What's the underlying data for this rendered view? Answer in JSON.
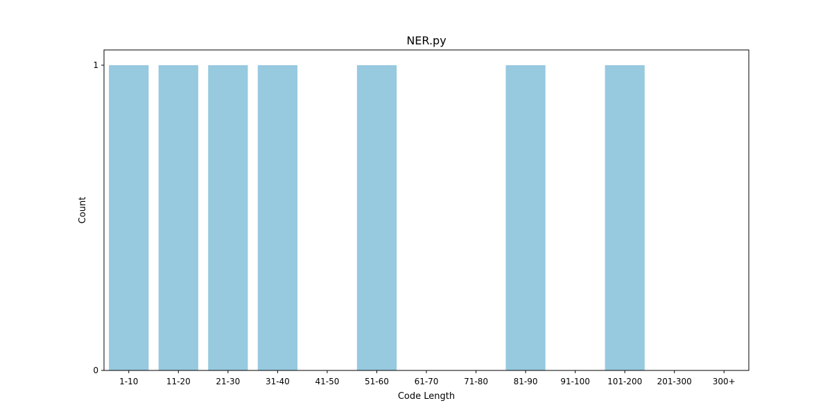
{
  "chart_data": {
    "type": "bar",
    "title": "NER.py",
    "xlabel": "Code Length",
    "ylabel": "Count",
    "categories": [
      "1-10",
      "11-20",
      "21-30",
      "31-40",
      "41-50",
      "51-60",
      "61-70",
      "71-80",
      "81-90",
      "91-100",
      "101-200",
      "201-300",
      "300+"
    ],
    "values": [
      1,
      1,
      1,
      1,
      0,
      1,
      0,
      0,
      1,
      0,
      1,
      0,
      0
    ],
    "ylim": [
      0,
      1.05
    ],
    "yticks": [
      0,
      1
    ],
    "grid": false,
    "bar_color": "#97c9df"
  }
}
